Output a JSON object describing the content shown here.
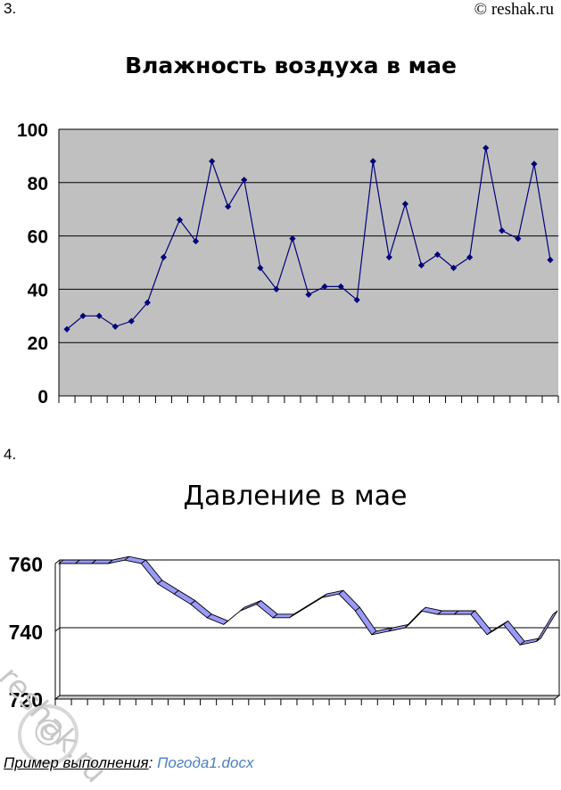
{
  "page": {
    "task3_number": "3.",
    "task4_number": "4.",
    "copyright": "© reshak.ru",
    "watermark_logo": "reshak.ru",
    "footer_label": "Пример выполнения",
    "footer_colon": ":",
    "footer_link": "Погода1.docx"
  },
  "chart_data": [
    {
      "type": "line",
      "title": "Влажность воздуха в мае",
      "ylim": [
        0,
        100
      ],
      "yticks": [
        "0",
        "20",
        "40",
        "60",
        "80",
        "100"
      ],
      "grid": true,
      "values": [
        25,
        30,
        30,
        26,
        28,
        35,
        52,
        66,
        58,
        88,
        71,
        81,
        48,
        40,
        59,
        38,
        41,
        41,
        36,
        88,
        52,
        72,
        49,
        53,
        48,
        52,
        93,
        62,
        59,
        87,
        51
      ],
      "colors": {
        "line": "#00007a",
        "plot_bg": "#c0c0c0"
      }
    },
    {
      "type": "line",
      "title": "Давление в мае",
      "ylim": [
        720,
        760
      ],
      "yticks": [
        "720",
        "740",
        "760"
      ],
      "grid": true,
      "values": [
        760,
        760,
        760,
        760,
        761,
        760,
        754,
        751,
        748,
        744,
        742,
        746,
        748,
        744,
        744,
        747,
        750,
        751,
        746,
        739,
        740,
        741,
        746,
        745,
        745,
        745,
        739,
        742,
        736,
        737,
        745
      ],
      "colors": {
        "ribbon": "#9a9afa",
        "plot_bg": "#ffffff"
      }
    }
  ]
}
